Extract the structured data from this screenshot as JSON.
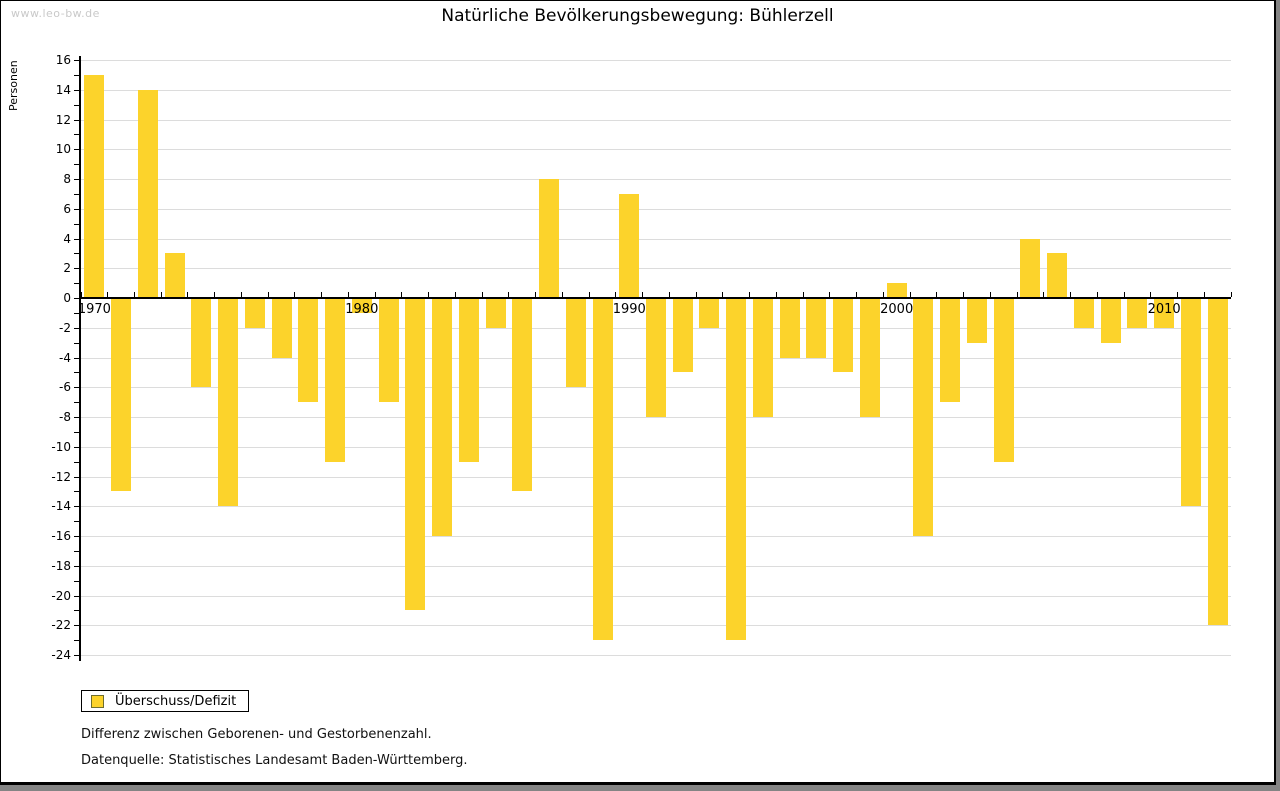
{
  "page": {
    "watermark": "www.leo-bw.de",
    "title": "Natürliche Bevölkerungsbewegung: Bühlerzell",
    "footnote1": "Differenz zwischen Geborenen- und Gestorbenenzahl.",
    "footnote2": "Datenquelle: Statistisches Landesamt Baden-Württemberg."
  },
  "colors": {
    "bar": "#fcd32b",
    "swatch_border": "#6e6e2e",
    "gridline": "#dcdcdc",
    "frame_background": "#848484",
    "watermark": "#c9c9c9"
  },
  "chart_data": {
    "type": "bar",
    "title": "Natürliche Bevölkerungsbewegung: Bühlerzell",
    "xlabel": "",
    "ylabel": "Personen",
    "ylim": [
      -24,
      16
    ],
    "ytick_step": 2,
    "grid": true,
    "legend_position": "bottom-left",
    "legend": [
      {
        "label": "Überschuss/Defizit",
        "color": "#fcd32b"
      }
    ],
    "x": [
      1970,
      1971,
      1972,
      1973,
      1974,
      1975,
      1976,
      1977,
      1978,
      1979,
      1980,
      1981,
      1982,
      1983,
      1984,
      1985,
      1986,
      1987,
      1988,
      1989,
      1990,
      1991,
      1992,
      1993,
      1994,
      1995,
      1996,
      1997,
      1998,
      1999,
      2000,
      2001,
      2002,
      2003,
      2004,
      2005,
      2006,
      2007,
      2008,
      2009,
      2010,
      2011,
      2012
    ],
    "values": [
      15,
      -13,
      14,
      3,
      -6,
      -14,
      -2,
      -4,
      -7,
      -11,
      -1,
      -7,
      -21,
      -16,
      -11,
      -2,
      -13,
      8,
      -6,
      -23,
      7,
      -8,
      -5,
      -2,
      -23,
      -8,
      -4,
      -4,
      -5,
      -8,
      1,
      -16,
      -7,
      -3,
      -11,
      4,
      3,
      -2,
      -3,
      -2,
      -2,
      -14,
      -22
    ],
    "xticks_labeled": [
      1970,
      1980,
      1990,
      2000,
      2010
    ]
  }
}
